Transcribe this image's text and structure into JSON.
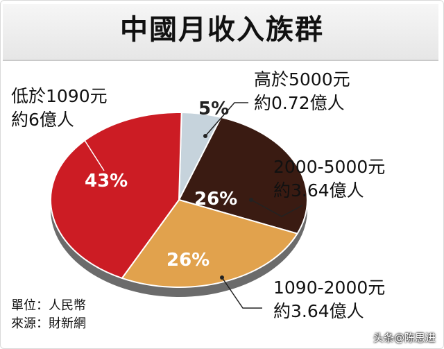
{
  "chart_data": {
    "type": "pie",
    "title": "中國月收入族群",
    "slices": [
      {
        "label": "高於5000元",
        "percent": 5,
        "people": "約0.72億人",
        "color": "#c6d3dc"
      },
      {
        "label": "2000-5000元",
        "percent": 26,
        "people": "約3.64億人",
        "color": "#3a1b12"
      },
      {
        "label": "1090-2000元",
        "percent": 26,
        "people": "約3.64億人",
        "color": "#e1a24d"
      },
      {
        "label": "低於1090元",
        "percent": 43,
        "people": "約6億人",
        "color": "#cc1c24"
      }
    ],
    "pct_labels": [
      "5%",
      "26%",
      "26%",
      "43%"
    ]
  },
  "footer": {
    "unit": "單位：人民幣",
    "source": "來源：財新網"
  },
  "watermark": "头条@陈思进"
}
